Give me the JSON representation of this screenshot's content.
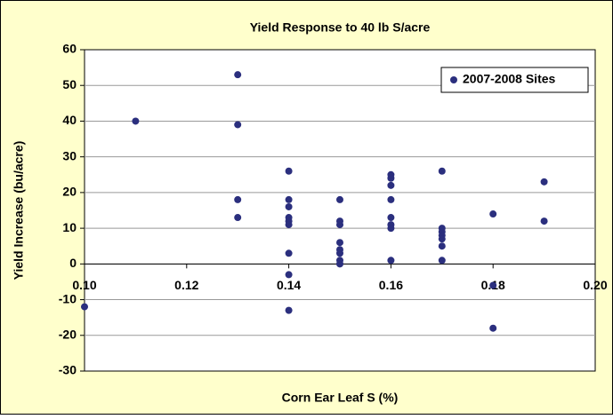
{
  "chart_data": {
    "type": "scatter",
    "title": "Yield Response to 40 lb S/acre",
    "x_label": "Corn Ear Leaf S (%)",
    "y_label": "Yield Increase (bu/acre)",
    "series": [
      {
        "name": "2007-2008 Sites",
        "color": "#2b2f7e",
        "x": [
          0.1,
          0.11,
          0.13,
          0.13,
          0.13,
          0.13,
          0.14,
          0.14,
          0.14,
          0.14,
          0.14,
          0.14,
          0.14,
          0.14,
          0.14,
          0.15,
          0.15,
          0.15,
          0.15,
          0.15,
          0.15,
          0.15,
          0.15,
          0.16,
          0.16,
          0.16,
          0.16,
          0.16,
          0.16,
          0.16,
          0.16,
          0.17,
          0.17,
          0.17,
          0.17,
          0.17,
          0.17,
          0.17,
          0.18,
          0.18,
          0.18,
          0.19,
          0.19
        ],
        "values": [
          -12,
          40,
          53,
          39,
          18,
          13,
          26,
          18,
          16,
          13,
          12,
          11,
          3,
          -3,
          -13,
          18,
          12,
          11,
          6,
          4,
          3,
          1,
          0,
          25,
          24,
          22,
          18,
          13,
          11,
          10,
          1,
          26,
          10,
          9,
          8,
          7,
          5,
          1,
          14,
          -6,
          -18,
          23,
          12
        ]
      }
    ],
    "xlim": [
      0.1,
      0.2
    ],
    "xticks": [
      {
        "value": 0.1,
        "label": "0.10"
      },
      {
        "value": 0.12,
        "label": "0.12"
      },
      {
        "value": 0.14,
        "label": "0.14"
      },
      {
        "value": 0.16,
        "label": "0.16"
      },
      {
        "value": 0.18,
        "label": "0.18"
      },
      {
        "value": 0.2,
        "label": "0.20"
      }
    ],
    "ylim": [
      -30,
      60
    ],
    "yticks": [
      -30,
      -20,
      -10,
      0,
      10,
      20,
      30,
      40,
      50,
      60
    ],
    "grid": true,
    "legend": "upper right"
  }
}
